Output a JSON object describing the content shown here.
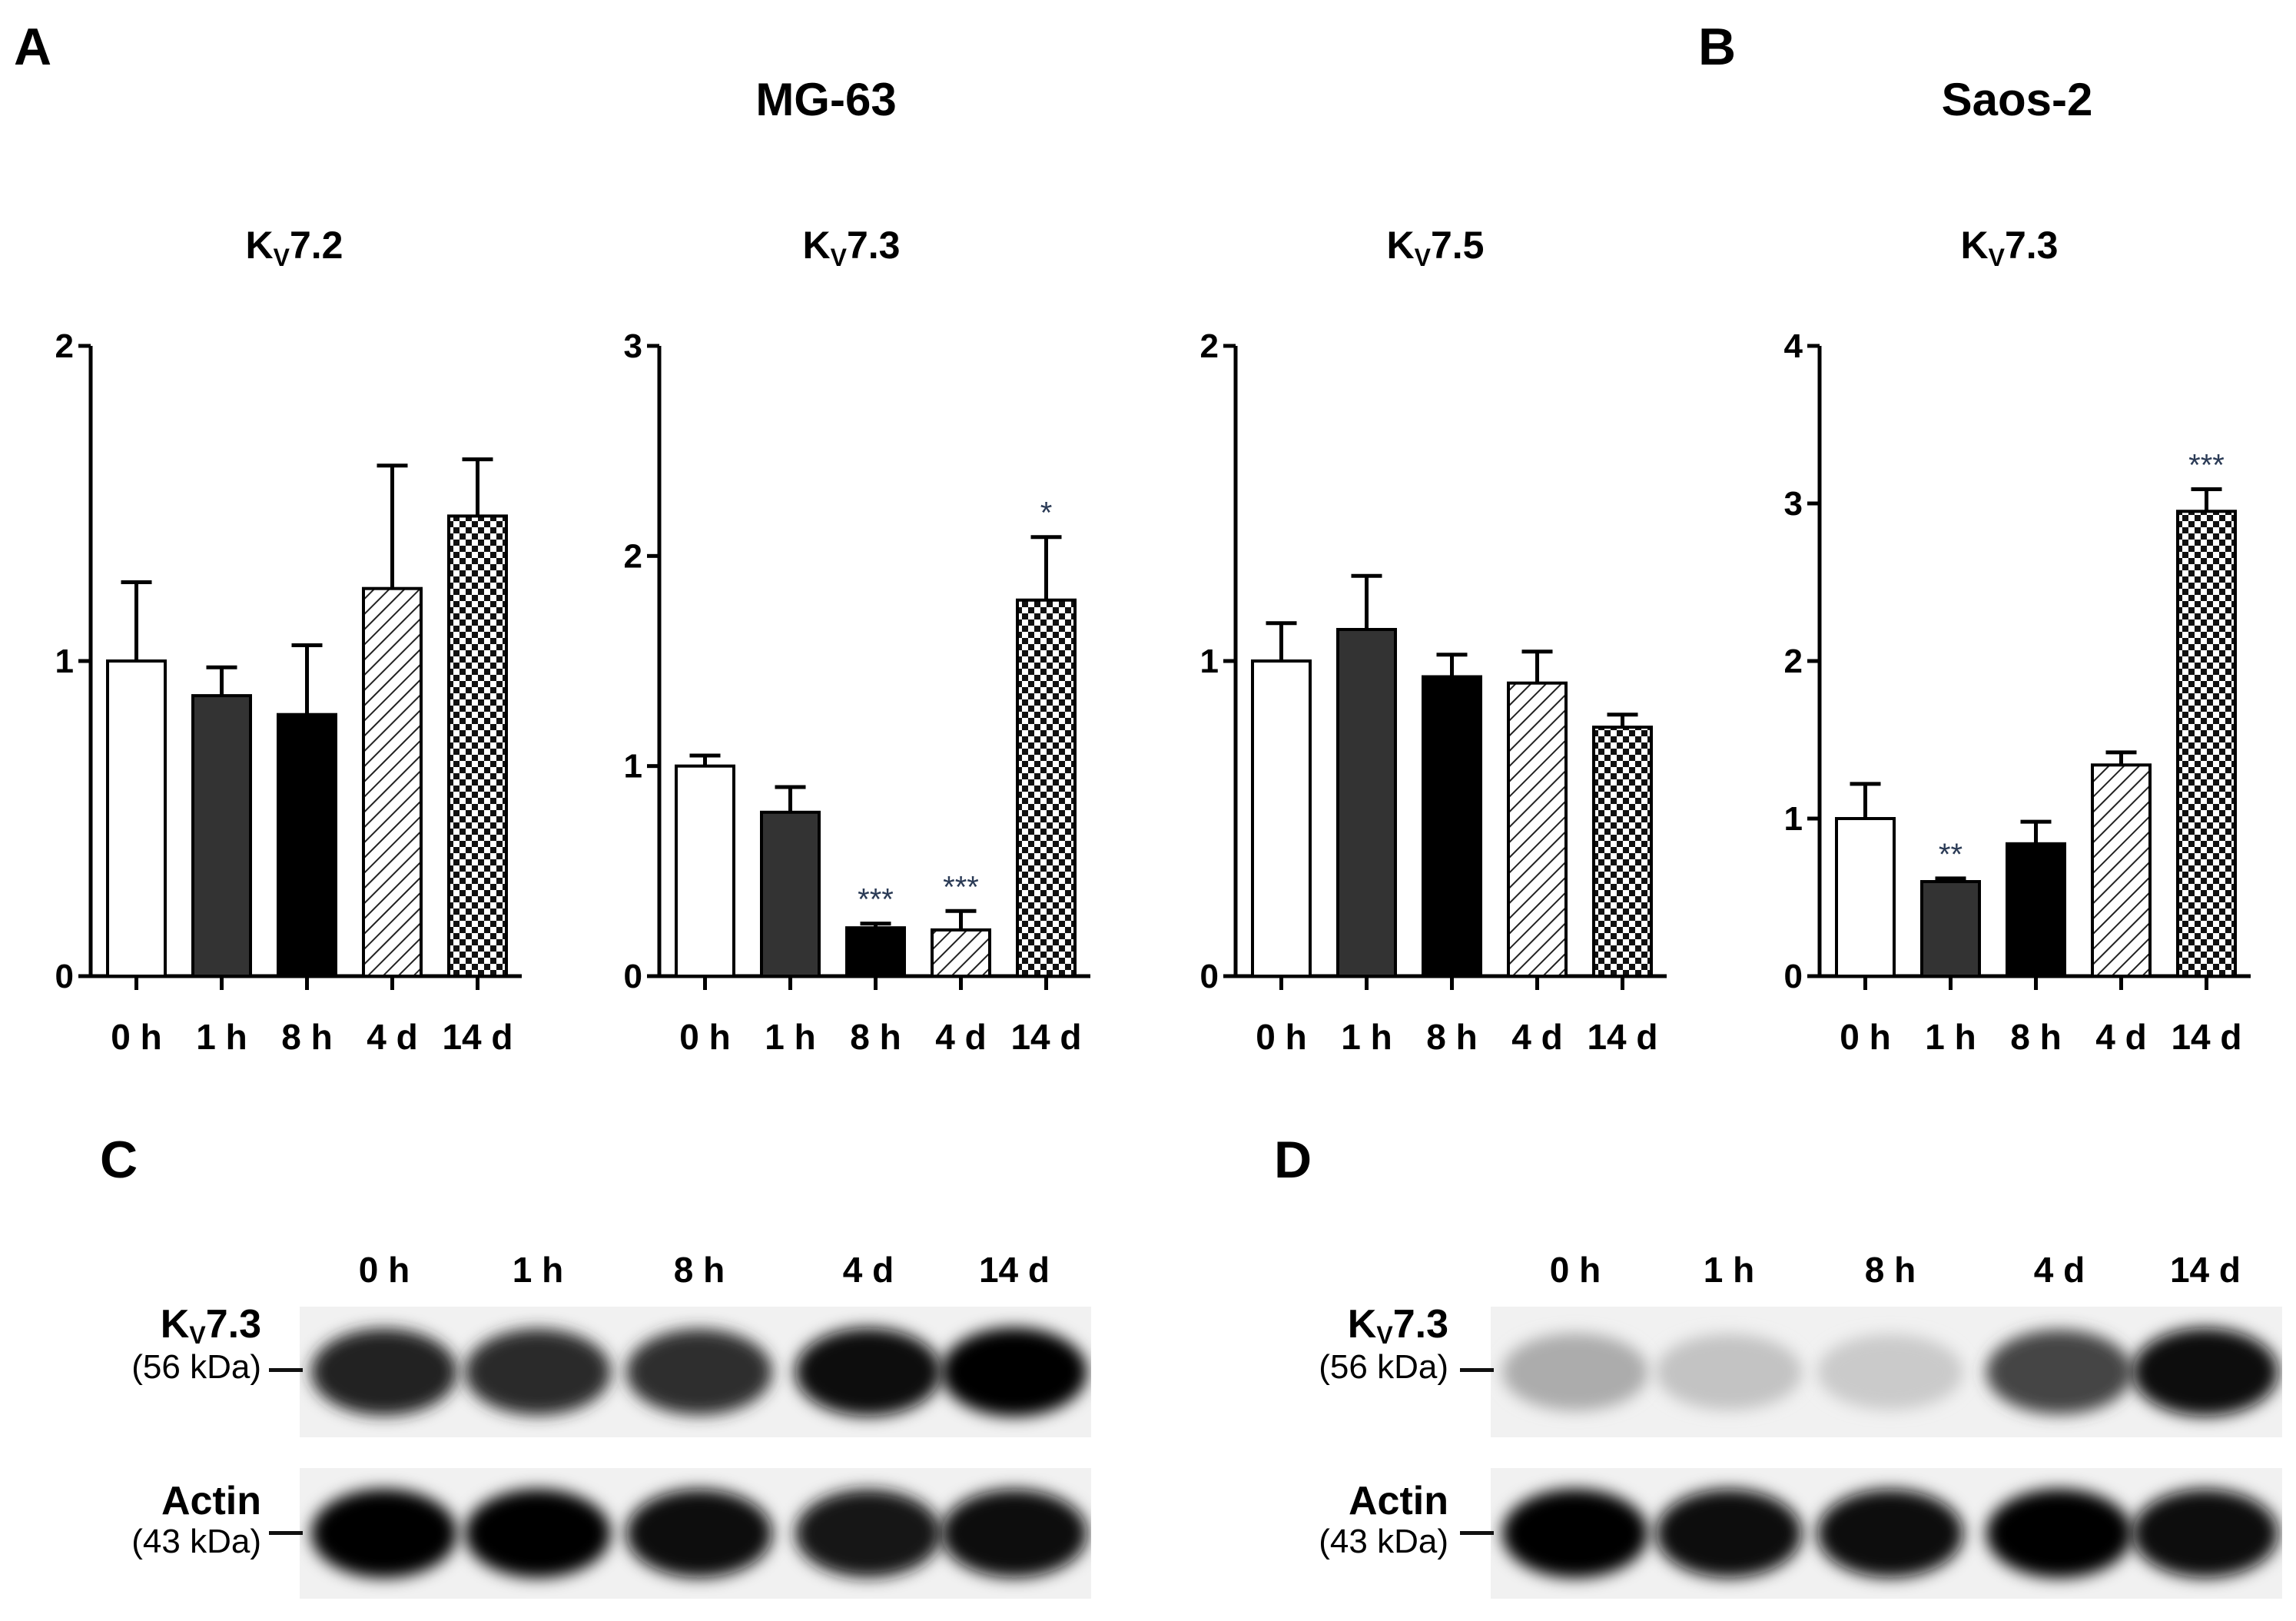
{
  "panels": {
    "A": {
      "letter": "A",
      "cell_line": "MG-63"
    },
    "B": {
      "letter": "B",
      "cell_line": "Saos-2"
    },
    "C": {
      "letter": "C"
    },
    "D": {
      "letter": "D"
    }
  },
  "chart_data": [
    {
      "type": "bar",
      "panel": "A",
      "title_main": "K",
      "title_sub": "V",
      "title_rest": "7.2",
      "categories": [
        "0 h",
        "1 h",
        "8 h",
        "4 d",
        "14 d"
      ],
      "values": [
        1.0,
        0.89,
        0.83,
        1.23,
        1.46
      ],
      "errors": [
        0.25,
        0.09,
        0.22,
        0.39,
        0.18
      ],
      "annotations": [
        "",
        "",
        "",
        "",
        ""
      ],
      "ylim": [
        0,
        2
      ],
      "yticks": [
        "0",
        "1",
        "2"
      ]
    },
    {
      "type": "bar",
      "panel": "A",
      "title_main": "K",
      "title_sub": "V",
      "title_rest": "7.3",
      "categories": [
        "0 h",
        "1 h",
        "8 h",
        "4 d",
        "14 d"
      ],
      "values": [
        1.0,
        0.78,
        0.23,
        0.22,
        1.79
      ],
      "errors": [
        0.05,
        0.12,
        0.02,
        0.09,
        0.3
      ],
      "annotations": [
        "",
        "",
        "***",
        "***",
        "*"
      ],
      "ylim": [
        0,
        3
      ],
      "yticks": [
        "0",
        "1",
        "2",
        "3"
      ]
    },
    {
      "type": "bar",
      "panel": "A",
      "title_main": "K",
      "title_sub": "V",
      "title_rest": "7.5",
      "categories": [
        "0 h",
        "1 h",
        "8 h",
        "4 d",
        "14 d"
      ],
      "values": [
        1.0,
        1.1,
        0.95,
        0.93,
        0.79
      ],
      "errors": [
        0.12,
        0.17,
        0.07,
        0.1,
        0.04
      ],
      "annotations": [
        "",
        "",
        "",
        "",
        ""
      ],
      "ylim": [
        0,
        2
      ],
      "yticks": [
        "0",
        "1",
        "2"
      ]
    },
    {
      "type": "bar",
      "panel": "B",
      "title_main": "K",
      "title_sub": "V",
      "title_rest": "7.3",
      "categories": [
        "0 h",
        "1 h",
        "8 h",
        "4 d",
        "14 d"
      ],
      "values": [
        1.0,
        0.6,
        0.84,
        1.34,
        2.95
      ],
      "errors": [
        0.22,
        0.02,
        0.14,
        0.08,
        0.14
      ],
      "annotations": [
        "",
        "**",
        "",
        "",
        "***"
      ],
      "ylim": [
        0,
        4
      ],
      "yticks": [
        "0",
        "1",
        "2",
        "3",
        "4"
      ]
    }
  ],
  "blots": {
    "C": {
      "lanes": [
        "0 h",
        "1 h",
        "8 h",
        "4 d",
        "14 d"
      ],
      "rows": [
        {
          "name_main": "K",
          "name_sub": "V",
          "name_rest": "7.3",
          "kda": "(56 kDa)",
          "intensity": [
            0.85,
            0.82,
            0.8,
            0.95,
            1.0
          ]
        },
        {
          "name_main": "Actin",
          "name_sub": "",
          "name_rest": "",
          "kda": "(43 kDa)",
          "intensity": [
            1.0,
            0.98,
            0.95,
            0.92,
            0.95
          ]
        }
      ]
    },
    "D": {
      "lanes": [
        "0 h",
        "1 h",
        "8 h",
        "4 d",
        "14 d"
      ],
      "rows": [
        {
          "name_main": "K",
          "name_sub": "V",
          "name_rest": "7.3",
          "kda": "(56 kDa)",
          "intensity": [
            0.25,
            0.15,
            0.12,
            0.7,
            0.95
          ]
        },
        {
          "name_main": "Actin",
          "name_sub": "",
          "name_rest": "",
          "kda": "(43 kDa)",
          "intensity": [
            1.0,
            0.97,
            0.95,
            1.0,
            0.97
          ]
        }
      ]
    }
  }
}
